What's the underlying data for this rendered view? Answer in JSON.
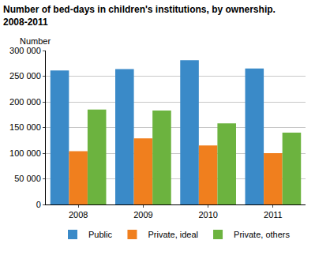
{
  "chart_data": {
    "type": "bar",
    "title": "Number of bed-days in children's institutions, by ownership.\n2008-2011",
    "ylabel": "Number",
    "categories": [
      "2008",
      "2009",
      "2010",
      "2011"
    ],
    "series": [
      {
        "name": "Public",
        "color": "#3a8ac8",
        "values": [
          261000,
          264000,
          281000,
          265000
        ]
      },
      {
        "name": "Private, ideal",
        "color": "#f07f1e",
        "values": [
          104000,
          129000,
          115000,
          100000
        ]
      },
      {
        "name": "Private, others",
        "color": "#6cb33f",
        "values": [
          185000,
          183000,
          158000,
          140000
        ]
      }
    ],
    "ylim": [
      0,
      300000
    ],
    "yticks": [
      0,
      {
        "value": 50000,
        "label": "50 000"
      },
      {
        "value": 100000,
        "label": "100 000"
      },
      {
        "value": 150000,
        "label": "150 000"
      },
      {
        "value": 200000,
        "label": "200 000"
      },
      {
        "value": 250000,
        "label": "250 000"
      },
      {
        "value": 300000,
        "label": "300 000"
      }
    ],
    "grid": true,
    "legend": "bottom"
  }
}
